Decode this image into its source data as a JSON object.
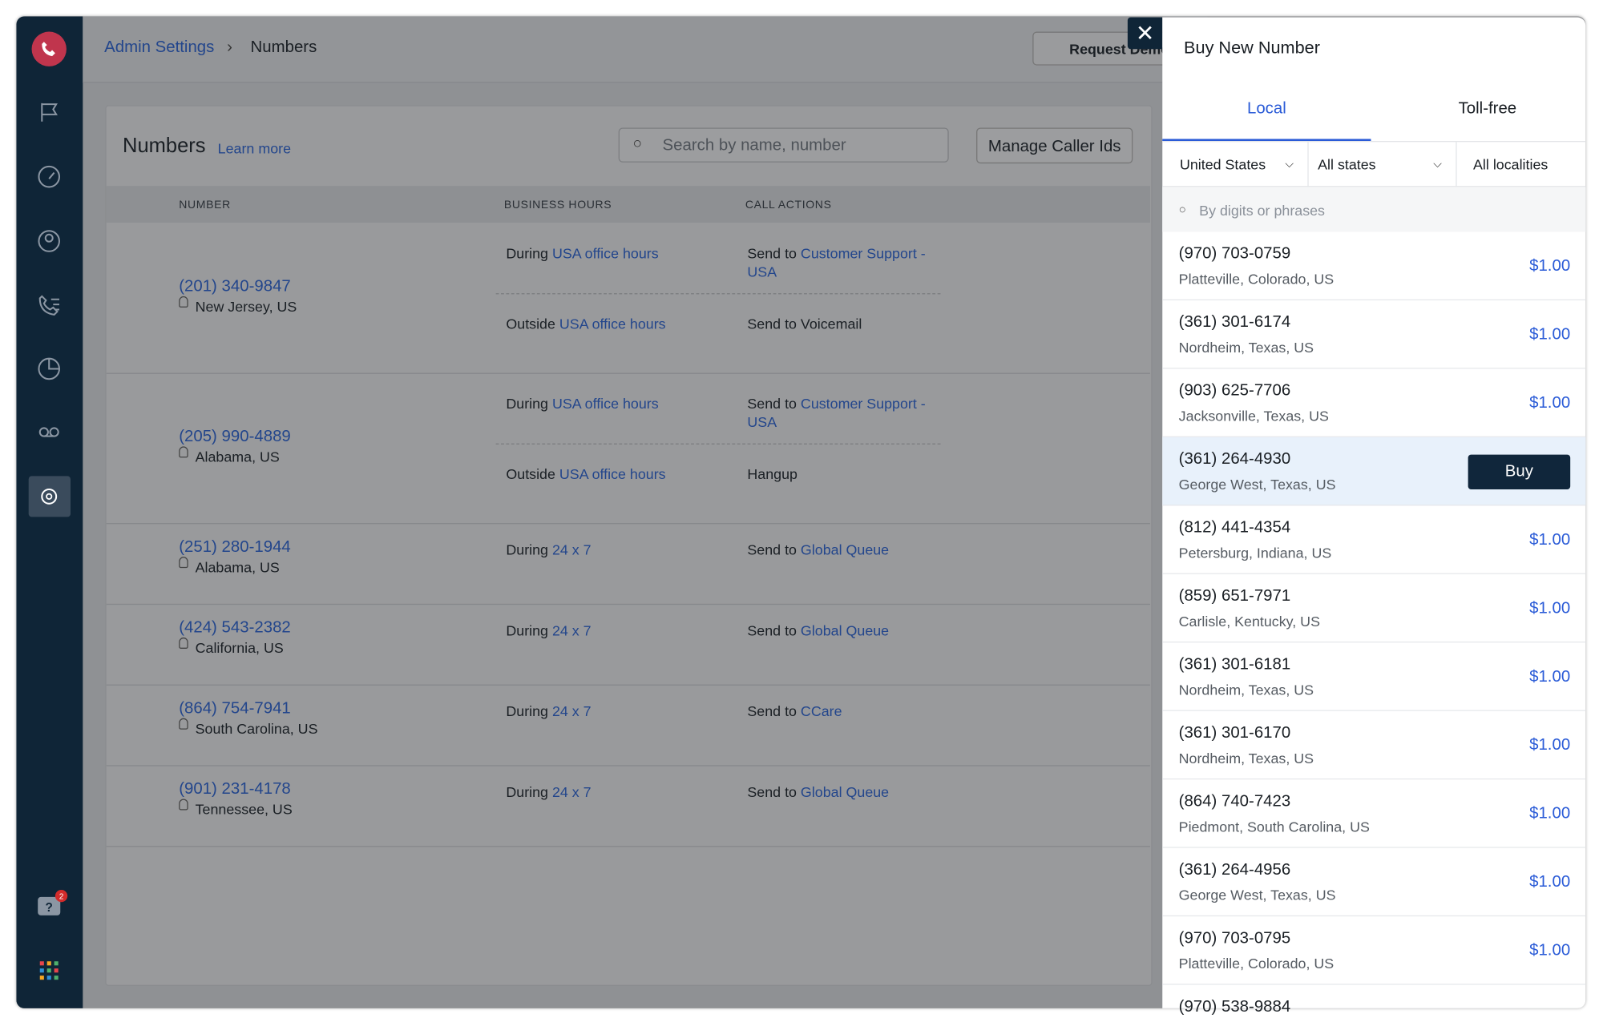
{
  "breadcrumb": [
    "Admin Settings",
    "Numbers"
  ],
  "request_demo": "Request Demo",
  "help_badge": "2",
  "numbers": {
    "title": "Numbers",
    "learn_more": "Learn more",
    "search_placeholder": "Search by name, number",
    "manage_button": "Manage Caller Ids",
    "columns": [
      "NUMBER",
      "BUSINESS HOURS",
      "CALL ACTIONS"
    ],
    "rows": [
      {
        "number": "(201) 340-9847",
        "location": "New Jersey, US",
        "rules": [
          {
            "hours_prefix": "During",
            "hours": "USA office hours",
            "action_prefix": "Send to",
            "action_link": "Customer Support - USA"
          },
          {
            "hours_prefix": "Outside",
            "hours": "USA office hours",
            "action": "Send to Voicemail"
          }
        ]
      },
      {
        "number": "(205) 990-4889",
        "location": "Alabama, US",
        "rules": [
          {
            "hours_prefix": "During",
            "hours": "USA office hours",
            "action_prefix": "Send to",
            "action_link": "Customer Support - USA"
          },
          {
            "hours_prefix": "Outside",
            "hours": "USA office hours",
            "action": "Hangup"
          }
        ]
      },
      {
        "number": "(251) 280-1944",
        "location": "Alabama, US",
        "rules": [
          {
            "hours_prefix": "During",
            "hours": "24 x 7",
            "action_prefix": "Send to",
            "action_link": "Global Queue"
          }
        ]
      },
      {
        "number": "(424) 543-2382",
        "location": "California, US",
        "rules": [
          {
            "hours_prefix": "During",
            "hours": "24 x 7",
            "action_prefix": "Send to",
            "action_link": "Global Queue"
          }
        ]
      },
      {
        "number": "(864) 754-7941",
        "location": "South Carolina, US",
        "rules": [
          {
            "hours_prefix": "During",
            "hours": "24 x 7",
            "action_prefix": "Send to",
            "action_link": "CCare"
          }
        ]
      },
      {
        "number": "(901) 231-4178",
        "location": "Tennessee, US",
        "rules": [
          {
            "hours_prefix": "During",
            "hours": "24 x 7",
            "action_prefix": "Send to",
            "action_link": "Global Queue"
          }
        ]
      }
    ]
  },
  "panel": {
    "title": "Buy New Number",
    "tabs": [
      "Local",
      "Toll-free"
    ],
    "filters": [
      "United States",
      "All states",
      "All localities"
    ],
    "search_placeholder": "By digits or phrases",
    "buy_label": "Buy",
    "listings": [
      {
        "number": "(970) 703-0759",
        "location": "Platteville, Colorado, US",
        "price": "$1.00"
      },
      {
        "number": "(361) 301-6174",
        "location": "Nordheim, Texas, US",
        "price": "$1.00"
      },
      {
        "number": "(903) 625-7706",
        "location": "Jacksonville, Texas, US",
        "price": "$1.00"
      },
      {
        "number": "(361) 264-4930",
        "location": "George West, Texas, US"
      },
      {
        "number": "(812) 441-4354",
        "location": "Petersburg, Indiana, US",
        "price": "$1.00"
      },
      {
        "number": "(859) 651-7971",
        "location": "Carlisle, Kentucky, US",
        "price": "$1.00"
      },
      {
        "number": "(361) 301-6181",
        "location": "Nordheim, Texas, US",
        "price": "$1.00"
      },
      {
        "number": "(361) 301-6170",
        "location": "Nordheim, Texas, US",
        "price": "$1.00"
      },
      {
        "number": "(864) 740-7423",
        "location": "Piedmont, South Carolina, US",
        "price": "$1.00"
      },
      {
        "number": "(361) 264-4956",
        "location": "George West, Texas, US",
        "price": "$1.00"
      },
      {
        "number": "(970) 703-0795",
        "location": "Platteville, Colorado, US",
        "price": "$1.00"
      },
      {
        "number": "(970) 538-9884"
      }
    ]
  }
}
